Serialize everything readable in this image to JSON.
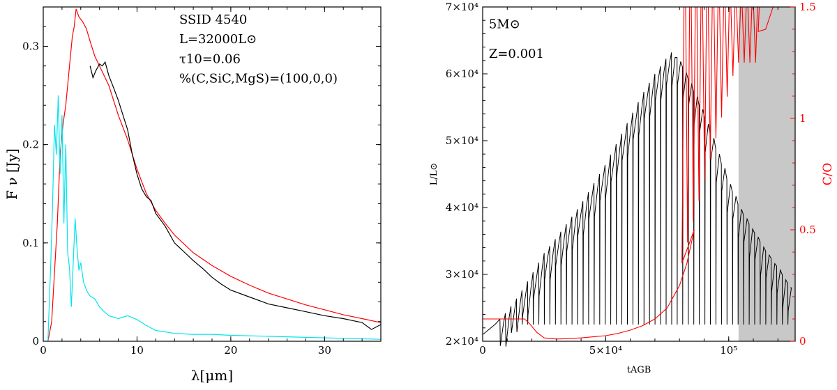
{
  "chart_data": [
    {
      "type": "line",
      "panel": "left",
      "xlabel": "λ[μm]",
      "ylabel": "F ν [Jy]",
      "xlim": [
        0,
        36
      ],
      "ylim": [
        0,
        0.34
      ],
      "x_ticks": [
        0,
        10,
        20,
        30
      ],
      "x_tick_labels": [
        "0",
        "10",
        "20",
        "30"
      ],
      "x_minor_step": 2,
      "y_ticks": [
        0,
        0.1,
        0.2,
        0.3
      ],
      "y_tick_labels": [
        "0",
        "0.1",
        "0.2",
        "0.3"
      ],
      "y_minor_step": 0.02,
      "grid": false,
      "annotations": [
        {
          "text": "SSID 4540",
          "x": 14.5,
          "y": 0.323
        },
        {
          "text": "L=32000L⊙",
          "x": 14.5,
          "y": 0.303
        },
        {
          "text": "τ10=0.06",
          "x": 14.5,
          "y": 0.283
        },
        {
          "text": "%(C,SiC,MgS)=(100,0,0)",
          "x": 14.5,
          "y": 0.263
        }
      ],
      "series": [
        {
          "color": "#ff0000",
          "x": [
            0.5,
            0.9,
            1.2,
            1.5,
            1.8,
            2.1,
            2.4,
            2.7,
            2.9,
            3.1,
            3.3,
            3.5,
            3.8,
            4.2,
            4.6,
            5.0,
            5.5,
            6.0,
            6.5,
            7.0,
            7.5,
            8.0,
            9.0,
            10.0,
            11.0,
            12.0,
            13.0,
            14.0,
            16.0,
            18.0,
            20.0,
            22.0,
            24.0,
            26.0,
            28.0,
            30.0,
            32.0,
            34.0,
            36.0
          ],
          "y": [
            0.0,
            0.02,
            0.07,
            0.12,
            0.19,
            0.22,
            0.24,
            0.27,
            0.29,
            0.31,
            0.32,
            0.338,
            0.33,
            0.325,
            0.318,
            0.305,
            0.29,
            0.28,
            0.27,
            0.26,
            0.245,
            0.23,
            0.205,
            0.175,
            0.15,
            0.133,
            0.12,
            0.108,
            0.09,
            0.077,
            0.066,
            0.057,
            0.049,
            0.043,
            0.037,
            0.032,
            0.027,
            0.023,
            0.019
          ]
        },
        {
          "color": "#000000",
          "x": [
            5.0,
            5.3,
            5.6,
            6.0,
            6.3,
            6.6,
            7.0,
            7.5,
            8.0,
            8.5,
            9.0,
            9.5,
            10.0,
            10.5,
            11.0,
            11.5,
            12.0,
            13.0,
            14.0,
            15.0,
            16.0,
            17.0,
            18.0,
            19.0,
            20.0,
            22.0,
            24.0,
            26.0,
            28.0,
            30.0,
            32.0,
            34.0,
            35.0,
            36.0
          ],
          "y": [
            0.28,
            0.268,
            0.275,
            0.282,
            0.28,
            0.284,
            0.27,
            0.258,
            0.245,
            0.23,
            0.215,
            0.19,
            0.17,
            0.155,
            0.147,
            0.143,
            0.13,
            0.117,
            0.1,
            0.091,
            0.082,
            0.074,
            0.065,
            0.058,
            0.052,
            0.045,
            0.038,
            0.034,
            0.03,
            0.026,
            0.023,
            0.019,
            0.012,
            0.017
          ]
        },
        {
          "color": "#00e5ee",
          "x": [
            0.5,
            0.8,
            1.0,
            1.2,
            1.4,
            1.6,
            1.8,
            2.0,
            2.2,
            2.4,
            2.6,
            2.8,
            3.0,
            3.2,
            3.4,
            3.6,
            3.8,
            4.0,
            4.3,
            4.7,
            5.0,
            5.5,
            6.0,
            6.5,
            7.0,
            8.0,
            9.0,
            10.0,
            11.0,
            12.0,
            14.0,
            16.0,
            18.0,
            20.0,
            24.0,
            28.0,
            32.0,
            36.0
          ],
          "y": [
            0.0,
            0.08,
            0.14,
            0.22,
            0.19,
            0.25,
            0.17,
            0.23,
            0.12,
            0.2,
            0.09,
            0.075,
            0.035,
            0.08,
            0.125,
            0.095,
            0.072,
            0.08,
            0.06,
            0.05,
            0.046,
            0.043,
            0.035,
            0.03,
            0.026,
            0.023,
            0.026,
            0.022,
            0.016,
            0.011,
            0.008,
            0.007,
            0.007,
            0.006,
            0.005,
            0.004,
            0.003,
            0.002
          ]
        }
      ]
    },
    {
      "type": "line",
      "panel": "right",
      "xlabel": "tAGB",
      "ylabel": "L/L⊙",
      "y2label": "C/O",
      "xlim": [
        0,
        127000
      ],
      "ylim": [
        20000,
        70000
      ],
      "y2lim": [
        0,
        1.5
      ],
      "x_ticks": [
        0,
        50000,
        100000
      ],
      "x_tick_labels": [
        "0",
        "5×10⁴",
        "10⁵"
      ],
      "x_minor_step": 10000,
      "y_ticks": [
        20000,
        30000,
        40000,
        50000,
        60000,
        70000
      ],
      "y_tick_labels": [
        "2×10⁴",
        "3×10⁴",
        "4×10⁴",
        "5×10⁴",
        "6×10⁴",
        "7×10⁴"
      ],
      "y_minor_step": 2000,
      "y2_ticks": [
        0,
        0.5,
        1,
        1.5
      ],
      "y2_tick_labels": [
        "0",
        "0.5",
        "1",
        "1.5"
      ],
      "y2_minor_step": 0.1,
      "grid": false,
      "shaded_region": {
        "x": [
          104000,
          127000
        ],
        "color": "#c8c8c8"
      },
      "annotations": [
        {
          "text": "5M⊙",
          "x": 2500,
          "y": 66800
        },
        {
          "text": "Z=0.001",
          "x": 2500,
          "y": 62400
        }
      ],
      "series": [
        {
          "color": "#000000",
          "axis": "left",
          "pulse_start": 7000,
          "pulse_period": 2250,
          "pulse_dips": [
            4000,
            5000
          ],
          "drop_floor": 22500,
          "x": [
            0,
            5000,
            10000,
            15000,
            20000,
            25000,
            30000,
            35000,
            40000,
            45000,
            50000,
            55000,
            60000,
            65000,
            70000,
            75000,
            77000,
            80000,
            85000,
            90000,
            95000,
            100000,
            105000,
            110000,
            115000,
            120000,
            125000
          ],
          "y": [
            21000,
            22500,
            24500,
            27000,
            30000,
            33200,
            35500,
            38000,
            40500,
            43500,
            46500,
            50000,
            53500,
            57000,
            60000,
            62500,
            63300,
            62000,
            58000,
            53500,
            48500,
            43500,
            39500,
            36500,
            33500,
            31000,
            28000
          ]
        },
        {
          "color": "#ff0000",
          "axis": "right",
          "x": [
            0,
            17000,
            19000,
            22000,
            25000,
            30000,
            35000,
            40000,
            45000,
            50000,
            55000,
            60000,
            65000,
            70000,
            75000,
            80000,
            83000,
            86000
          ],
          "y": [
            0.1,
            0.1,
            0.08,
            0.04,
            0.015,
            0.01,
            0.012,
            0.015,
            0.02,
            0.025,
            0.035,
            0.05,
            0.07,
            0.1,
            0.15,
            0.25,
            0.35,
            0.5
          ],
          "pulse_start": 81000,
          "pulse_end": 112000,
          "pulse_period": 2300,
          "pulse_peak": 1.5,
          "tail": {
            "x": [
              112000,
              115000,
              118000
            ],
            "y": [
              1.39,
              1.4,
              1.5
            ]
          }
        }
      ]
    }
  ]
}
